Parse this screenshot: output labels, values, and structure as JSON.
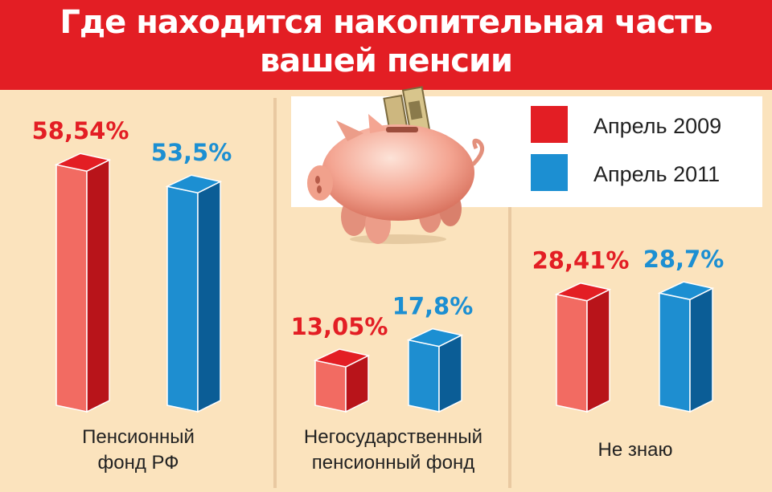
{
  "title_lines": [
    "Где находится накопительная часть",
    "вашей пенсии"
  ],
  "legend": [
    {
      "label": "Апрель 2009",
      "color": "#e31e24"
    },
    {
      "label": "Апрель 2011",
      "color": "#1c8fd2"
    }
  ],
  "chart_data": {
    "type": "bar",
    "title": "Где находится накопительная часть вашей пенсии",
    "categories": [
      [
        "Пенсионный",
        "фонд РФ"
      ],
      [
        "Негосударственный",
        "пенсионный фонд"
      ],
      [
        "Не знаю"
      ]
    ],
    "series": [
      {
        "name": "Апрель 2009",
        "values": [
          58.54,
          13.05,
          28.41
        ],
        "labels": [
          "58,54%",
          "13,05%",
          "28,41%"
        ],
        "color": "#e31e24"
      },
      {
        "name": "Апрель 2011",
        "values": [
          53.5,
          17.8,
          28.7
        ],
        "labels": [
          "53,5%",
          "17,8%",
          "28,7%"
        ],
        "color": "#1c8fd2"
      }
    ],
    "grid": false,
    "legend_position": "top-right"
  },
  "icons": [
    "piggy-bank-icon"
  ]
}
